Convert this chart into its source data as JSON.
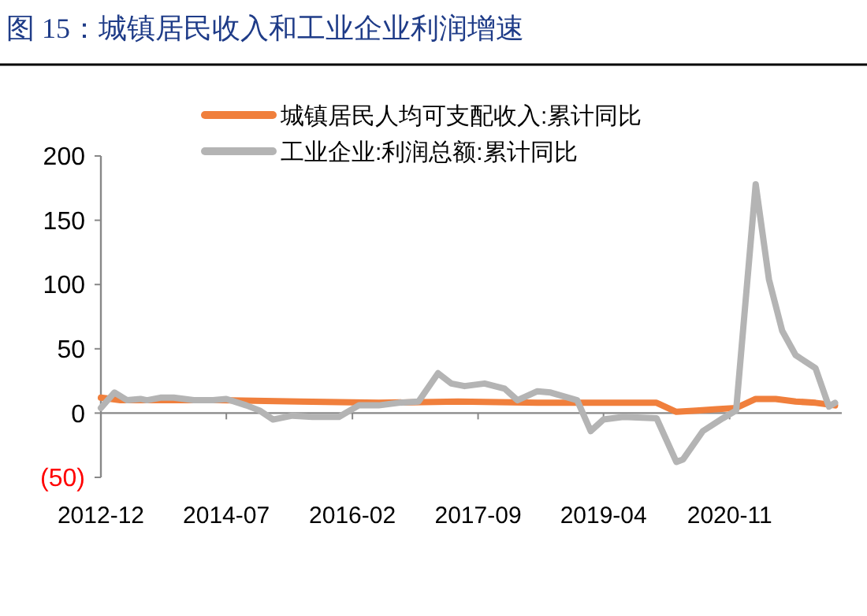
{
  "chart_data": {
    "type": "line",
    "title": "图 15：城镇居民收入和工业企业利润增速",
    "xlim": [
      "2012-12",
      "2022-04"
    ],
    "xticks": [
      "2012-12",
      "2014-07",
      "2016-02",
      "2017-09",
      "2019-04",
      "2020-11"
    ],
    "ylim": [
      -50,
      200
    ],
    "yticks": [
      {
        "value": -50,
        "label": "(50)"
      },
      0,
      50,
      100,
      150,
      200
    ],
    "legend": "top",
    "line_style": "solid",
    "marker": "none",
    "series": [
      {
        "name": "城镇居民人均可支配收入:累计同比",
        "color": "#f07f3c",
        "x": [
          "2012-12",
          "2013-03",
          "2014-06",
          "2015-06",
          "2016-06",
          "2017-06",
          "2018-06",
          "2019-06",
          "2019-12",
          "2020-03",
          "2020-06",
          "2020-09",
          "2020-12",
          "2021-03",
          "2021-06",
          "2021-09",
          "2021-12",
          "2022-03"
        ],
        "values": [
          12,
          10,
          10,
          9,
          8,
          9,
          8,
          8,
          8,
          1,
          2,
          3,
          4,
          11,
          11,
          9,
          8,
          6
        ]
      },
      {
        "name": "工业企业:利润总额:累计同比",
        "color": "#b4b4b4",
        "x": [
          "2012-12",
          "2013-02",
          "2013-04",
          "2013-06",
          "2013-07",
          "2013-09",
          "2013-11",
          "2014-02",
          "2014-05",
          "2014-07",
          "2014-10",
          "2014-12",
          "2015-02",
          "2015-05",
          "2015-08",
          "2015-12",
          "2016-03",
          "2016-06",
          "2016-09",
          "2016-12",
          "2017-03",
          "2017-05",
          "2017-07",
          "2017-10",
          "2018-01",
          "2018-03",
          "2018-06",
          "2018-08",
          "2018-12",
          "2019-02",
          "2019-04",
          "2019-07",
          "2019-12",
          "2020-03",
          "2020-04",
          "2020-07",
          "2020-10",
          "2020-12",
          "2021-03",
          "2021-05",
          "2021-07",
          "2021-09",
          "2021-12",
          "2022-02",
          "2022-03"
        ],
        "values": [
          4,
          16,
          10,
          11,
          10,
          12,
          12,
          10,
          10,
          11,
          6,
          2,
          -5,
          -2,
          -3,
          -3,
          6,
          6,
          8,
          9,
          31,
          23,
          21,
          23,
          19,
          10,
          17,
          16,
          10,
          -14,
          -5,
          -3,
          -4,
          -38,
          -36,
          -14,
          -4,
          2,
          178,
          104,
          64,
          45,
          35,
          5,
          8
        ]
      }
    ]
  }
}
